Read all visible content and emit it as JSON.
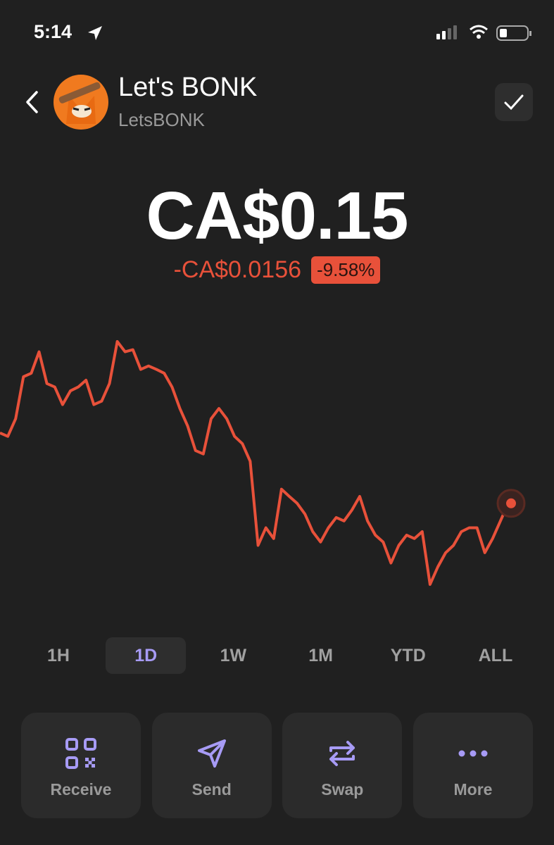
{
  "status_bar": {
    "time": "5:14"
  },
  "header": {
    "title": "Let's BONK",
    "subtitle": "LetsBONK"
  },
  "price": "CA$0.15",
  "change": {
    "amount": "-CA$0.0156",
    "percent": "-9.58%"
  },
  "chart_data": {
    "type": "line",
    "color": "#e8513a",
    "values": [
      0.1664,
      0.1656,
      0.1697,
      0.1795,
      0.1803,
      0.1853,
      0.1779,
      0.1771,
      0.173,
      0.1762,
      0.1771,
      0.1787,
      0.173,
      0.1738,
      0.1779,
      0.1877,
      0.1853,
      0.1858,
      0.1812,
      0.182,
      0.1812,
      0.1803,
      0.1771,
      0.1721,
      0.168,
      0.1623,
      0.1615,
      0.1697,
      0.1721,
      0.1697,
      0.1656,
      0.1639,
      0.1598,
      0.1402,
      0.1443,
      0.1418,
      0.1533,
      0.1516,
      0.15,
      0.1475,
      0.1434,
      0.141,
      0.1443,
      0.1467,
      0.1459,
      0.1484,
      0.1516,
      0.1459,
      0.1426,
      0.141,
      0.1361,
      0.1402,
      0.1426,
      0.1418,
      0.1434,
      0.1311,
      0.1352,
      0.1385,
      0.1402,
      0.1434,
      0.1443,
      0.1443,
      0.1385,
      0.1418,
      0.1459,
      0.15
    ]
  },
  "ranges": [
    "1H",
    "1D",
    "1W",
    "1M",
    "YTD",
    "ALL"
  ],
  "actions": [
    "Receive",
    "Send",
    "Swap",
    "More"
  ]
}
